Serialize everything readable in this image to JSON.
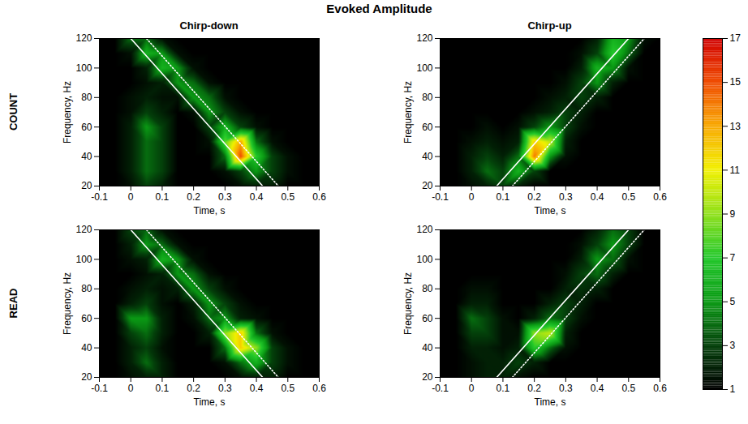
{
  "chart_data": {
    "type": "heatmap",
    "title": "Evoked Amplitude",
    "xlabel": "Time, s",
    "ylabel": "Frequency, Hz",
    "xlim": [
      -0.1,
      0.6
    ],
    "xticks": [
      -0.1,
      0,
      0.1,
      0.2,
      0.3,
      0.4,
      0.5,
      0.6
    ],
    "ylim": [
      20,
      120
    ],
    "yticks": [
      20,
      40,
      60,
      80,
      100,
      120
    ],
    "colorbar": {
      "lim": [
        1,
        17
      ],
      "ticks": [
        1,
        3,
        5,
        7,
        9,
        11,
        13,
        15,
        17
      ]
    },
    "x": [
      -0.1,
      -0.05,
      0,
      0.05,
      0.1,
      0.15,
      0.2,
      0.25,
      0.3,
      0.35,
      0.4,
      0.45,
      0.5,
      0.55,
      0.6
    ],
    "y": [
      20,
      30,
      40,
      50,
      60,
      70,
      80,
      90,
      100,
      110,
      120
    ],
    "columns": [
      {
        "title": "Chirp-down",
        "lines": [
          {
            "line_style": "solid",
            "color": "#ffffff",
            "x": [
              0,
              0.42
            ],
            "y": [
              120,
              20
            ]
          },
          {
            "line_style": "dotted",
            "color": "#ffffff",
            "x": [
              0.05,
              0.47
            ],
            "y": [
              120,
              20
            ]
          }
        ]
      },
      {
        "title": "Chirp-up",
        "lines": [
          {
            "line_style": "solid",
            "color": "#ffffff",
            "x": [
              0.08,
              0.5
            ],
            "y": [
              20,
              120
            ]
          },
          {
            "line_style": "dotted",
            "color": "#ffffff",
            "x": [
              0.13,
              0.55
            ],
            "y": [
              20,
              120
            ]
          }
        ]
      }
    ],
    "rows": [
      {
        "label": "COUNT",
        "panels": [
          {
            "cells": [
              [
                1,
                1,
                1.5,
                3,
                2,
                1,
                1,
                1,
                1,
                1.5,
                2,
                2,
                1,
                1,
                1
              ],
              [
                1,
                1,
                2,
                4,
                3,
                1,
                1,
                1,
                1.5,
                3,
                5,
                3,
                1.5,
                1,
                1
              ],
              [
                1,
                1,
                2,
                4,
                3,
                1,
                1,
                1,
                4,
                15,
                7,
                3,
                1.5,
                1,
                1
              ],
              [
                1,
                1,
                2,
                4,
                3,
                1,
                1,
                1.5,
                8,
                13,
                4,
                1.5,
                1,
                1,
                1
              ],
              [
                1,
                1,
                2,
                5,
                3,
                1,
                1,
                3,
                6,
                3,
                1.5,
                1,
                1,
                1,
                1
              ],
              [
                1,
                1,
                1.5,
                3,
                2,
                1,
                1.5,
                5,
                3,
                1.5,
                1,
                1,
                1,
                1,
                1
              ],
              [
                1,
                1,
                1.5,
                2,
                1.5,
                1.5,
                5,
                4,
                1.5,
                1,
                1,
                1,
                1,
                1,
                1
              ],
              [
                1,
                1,
                1,
                1.5,
                2,
                5,
                4,
                1.5,
                1,
                1,
                1,
                1,
                1,
                1,
                1
              ],
              [
                1,
                1,
                1,
                2,
                6,
                5,
                1.5,
                1,
                1,
                1,
                1,
                1,
                1,
                1,
                1
              ],
              [
                1,
                1,
                1.5,
                6,
                5,
                1.5,
                1,
                1,
                1,
                1,
                1,
                1,
                1,
                1,
                1
              ],
              [
                1,
                1,
                4,
                4,
                1.5,
                1,
                1,
                1,
                1,
                1,
                1,
                1,
                1,
                1,
                1
              ]
            ]
          },
          {
            "cells": [
              [
                1,
                1,
                1.5,
                2,
                3,
                2,
                1,
                1,
                1,
                1,
                1,
                1,
                1,
                1,
                1
              ],
              [
                1,
                1,
                2,
                4,
                3,
                6,
                3,
                1,
                1,
                1,
                1,
                1,
                1,
                1,
                1
              ],
              [
                1,
                1,
                2,
                3,
                2,
                4,
                14,
                5,
                1.5,
                1,
                1,
                1,
                1,
                1,
                1
              ],
              [
                1,
                1,
                1.5,
                2,
                1.5,
                2,
                12,
                10,
                2,
                1,
                1,
                1,
                1,
                1,
                1
              ],
              [
                1,
                1,
                1,
                1.5,
                1,
                1.5,
                3,
                5,
                3,
                1.5,
                1,
                1,
                1,
                1,
                1
              ],
              [
                1,
                1,
                1,
                1,
                1,
                1,
                1.5,
                2,
                3,
                2,
                1,
                1,
                1,
                1,
                1
              ],
              [
                1,
                1,
                1,
                1,
                1,
                1,
                1,
                1.5,
                2,
                3,
                2,
                1,
                1,
                1,
                1
              ],
              [
                1,
                1,
                1,
                1,
                1,
                1,
                1,
                1,
                1.5,
                3,
                5,
                2,
                1,
                1,
                1
              ],
              [
                1,
                1,
                1,
                1,
                1,
                1,
                1,
                1,
                1,
                2,
                6,
                5,
                1.5,
                1,
                1
              ],
              [
                1,
                1,
                1,
                1,
                1,
                1,
                1,
                1,
                1,
                1.5,
                3,
                7,
                4,
                1,
                1
              ],
              [
                1,
                1,
                1,
                1,
                1,
                1,
                1,
                1,
                1,
                1,
                2,
                6,
                5,
                1.5,
                1
              ]
            ]
          }
        ]
      },
      {
        "label": "READ",
        "panels": [
          {
            "cells": [
              [
                1,
                1,
                1.5,
                2,
                2,
                1,
                1,
                1,
                1,
                1.5,
                2,
                2,
                1,
                1,
                1
              ],
              [
                1,
                1,
                2,
                4,
                2,
                1,
                1,
                1,
                1.5,
                4,
                6,
                3,
                1.5,
                1,
                1
              ],
              [
                1,
                1,
                2,
                3,
                1.5,
                1,
                1,
                1,
                4,
                12,
                9,
                3,
                1.5,
                1,
                1
              ],
              [
                1,
                1,
                3,
                4,
                2,
                1,
                1,
                2,
                9,
                12,
                4,
                1.5,
                1,
                1,
                1
              ],
              [
                1,
                1,
                5,
                5,
                2,
                1,
                1.5,
                4,
                5,
                2,
                1.5,
                1,
                1,
                1,
                1
              ],
              [
                1,
                1,
                2,
                3,
                1.5,
                1,
                2,
                5,
                3,
                1.5,
                1,
                1,
                1,
                1,
                1
              ],
              [
                1,
                1,
                1.5,
                2,
                1.5,
                2,
                5,
                3,
                1.5,
                1,
                1,
                1,
                1,
                1,
                1
              ],
              [
                1,
                1,
                1,
                1.5,
                2,
                5,
                4,
                1.5,
                1,
                1,
                1,
                1,
                1,
                1,
                1
              ],
              [
                1,
                1,
                1.5,
                2,
                6,
                5,
                1.5,
                1,
                1,
                1,
                1,
                1,
                1,
                1,
                1
              ],
              [
                1,
                1,
                2,
                5,
                4,
                1.5,
                1,
                1,
                1,
                1,
                1,
                1,
                1,
                1,
                1
              ],
              [
                1,
                1,
                3,
                4,
                1.5,
                1,
                1,
                1,
                1,
                1,
                1,
                1,
                1,
                1,
                1
              ]
            ]
          },
          {
            "cells": [
              [
                1,
                1,
                1.5,
                2,
                2,
                1.5,
                1,
                1,
                1,
                1,
                1,
                1,
                1,
                1,
                1
              ],
              [
                1,
                1,
                1.5,
                2,
                2,
                3,
                2,
                1,
                1,
                1,
                1,
                1,
                1,
                1,
                1
              ],
              [
                1,
                1,
                2,
                2,
                1.5,
                2,
                7,
                4,
                1.5,
                1,
                1,
                1,
                1,
                1,
                1
              ],
              [
                1,
                1,
                3,
                3,
                1.5,
                1.5,
                9,
                10,
                2,
                1,
                1,
                1,
                1,
                1,
                1
              ],
              [
                1,
                1,
                4,
                3,
                1.5,
                1,
                2,
                4,
                3,
                1.5,
                1,
                1,
                1,
                1,
                1
              ],
              [
                1,
                1,
                2,
                2,
                1,
                1,
                1,
                2,
                3,
                2,
                1,
                1,
                1,
                1,
                1
              ],
              [
                1,
                1,
                1.5,
                1.5,
                1,
                1,
                1,
                1,
                2,
                2.5,
                2,
                1,
                1,
                1,
                1
              ],
              [
                1,
                1,
                1,
                1,
                1,
                1,
                1,
                1,
                1.5,
                3,
                4,
                2,
                1,
                1,
                1
              ],
              [
                1,
                1,
                1,
                1,
                1,
                1,
                1,
                1,
                1,
                2,
                5,
                4,
                1.5,
                1,
                1
              ],
              [
                1,
                1,
                1,
                1,
                1,
                1,
                1,
                1,
                1,
                1.5,
                3,
                5,
                3,
                1,
                1
              ],
              [
                1,
                1,
                1,
                1,
                1,
                1,
                1,
                1,
                1,
                1,
                2,
                4,
                3,
                1,
                1
              ]
            ]
          }
        ]
      }
    ]
  }
}
